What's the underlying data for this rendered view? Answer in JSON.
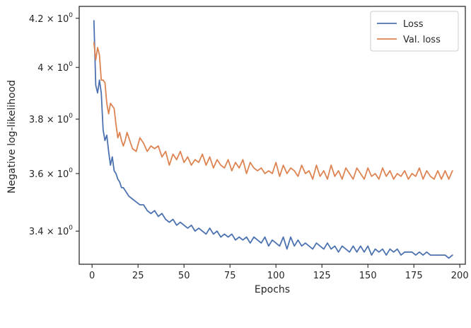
{
  "chart_data": {
    "type": "line",
    "title": "",
    "xlabel": "Epochs",
    "ylabel": "Negative log-likelihood",
    "yscale": "log",
    "xlim": [
      -7,
      203
    ],
    "ylim": [
      3.29,
      4.25
    ],
    "x_ticks": [
      0,
      25,
      50,
      75,
      100,
      125,
      150,
      175,
      200
    ],
    "x_tick_labels": [
      "0",
      "25",
      "50",
      "75",
      "100",
      "125",
      "150",
      "175",
      "200"
    ],
    "y_ticks": [
      3.4,
      3.6,
      3.8,
      4.0,
      4.2
    ],
    "y_tick_labels": [
      {
        "mantissa": "3.4",
        "base": "10",
        "exp": "0"
      },
      {
        "mantissa": "3.6",
        "base": "10",
        "exp": "0"
      },
      {
        "mantissa": "3.8",
        "base": "10",
        "exp": "0"
      },
      {
        "mantissa": "4",
        "base": "10",
        "exp": "0"
      },
      {
        "mantissa": "4.2",
        "base": "10",
        "exp": "0"
      }
    ],
    "grid": false,
    "legend_position": "top-right",
    "series": [
      {
        "name": "Loss",
        "color": "#4c72b0",
        "points": [
          [
            1,
            4.19
          ],
          [
            2,
            3.93
          ],
          [
            3,
            3.9
          ],
          [
            4,
            3.95
          ],
          [
            5,
            3.9
          ],
          [
            6,
            3.76
          ],
          [
            7,
            3.72
          ],
          [
            8,
            3.74
          ],
          [
            9,
            3.68
          ],
          [
            10,
            3.63
          ],
          [
            11,
            3.66
          ],
          [
            12,
            3.61
          ],
          [
            13,
            3.6
          ],
          [
            14,
            3.58
          ],
          [
            15,
            3.57
          ],
          [
            16,
            3.55
          ],
          [
            17,
            3.55
          ],
          [
            18,
            3.54
          ],
          [
            19,
            3.53
          ],
          [
            20,
            3.52
          ],
          [
            22,
            3.51
          ],
          [
            24,
            3.5
          ],
          [
            26,
            3.49
          ],
          [
            28,
            3.49
          ],
          [
            30,
            3.47
          ],
          [
            32,
            3.46
          ],
          [
            34,
            3.47
          ],
          [
            36,
            3.45
          ],
          [
            38,
            3.46
          ],
          [
            40,
            3.44
          ],
          [
            42,
            3.43
          ],
          [
            44,
            3.44
          ],
          [
            46,
            3.42
          ],
          [
            48,
            3.43
          ],
          [
            50,
            3.42
          ],
          [
            52,
            3.41
          ],
          [
            54,
            3.42
          ],
          [
            56,
            3.4
          ],
          [
            58,
            3.41
          ],
          [
            60,
            3.4
          ],
          [
            62,
            3.39
          ],
          [
            64,
            3.41
          ],
          [
            66,
            3.39
          ],
          [
            68,
            3.4
          ],
          [
            70,
            3.38
          ],
          [
            72,
            3.39
          ],
          [
            74,
            3.38
          ],
          [
            76,
            3.39
          ],
          [
            78,
            3.37
          ],
          [
            80,
            3.38
          ],
          [
            82,
            3.37
          ],
          [
            84,
            3.38
          ],
          [
            86,
            3.36
          ],
          [
            88,
            3.38
          ],
          [
            90,
            3.37
          ],
          [
            92,
            3.36
          ],
          [
            94,
            3.38
          ],
          [
            96,
            3.35
          ],
          [
            98,
            3.37
          ],
          [
            100,
            3.36
          ],
          [
            102,
            3.35
          ],
          [
            104,
            3.38
          ],
          [
            106,
            3.34
          ],
          [
            108,
            3.38
          ],
          [
            110,
            3.35
          ],
          [
            112,
            3.37
          ],
          [
            114,
            3.35
          ],
          [
            116,
            3.36
          ],
          [
            118,
            3.35
          ],
          [
            120,
            3.34
          ],
          [
            122,
            3.36
          ],
          [
            124,
            3.35
          ],
          [
            126,
            3.34
          ],
          [
            128,
            3.36
          ],
          [
            130,
            3.34
          ],
          [
            132,
            3.35
          ],
          [
            134,
            3.33
          ],
          [
            136,
            3.35
          ],
          [
            138,
            3.34
          ],
          [
            140,
            3.33
          ],
          [
            142,
            3.35
          ],
          [
            144,
            3.33
          ],
          [
            146,
            3.35
          ],
          [
            148,
            3.33
          ],
          [
            150,
            3.35
          ],
          [
            152,
            3.32
          ],
          [
            154,
            3.34
          ],
          [
            156,
            3.33
          ],
          [
            158,
            3.34
          ],
          [
            160,
            3.32
          ],
          [
            162,
            3.34
          ],
          [
            164,
            3.33
          ],
          [
            166,
            3.34
          ],
          [
            168,
            3.32
          ],
          [
            170,
            3.33
          ],
          [
            172,
            3.33
          ],
          [
            174,
            3.33
          ],
          [
            176,
            3.32
          ],
          [
            178,
            3.33
          ],
          [
            180,
            3.32
          ],
          [
            182,
            3.33
          ],
          [
            184,
            3.32
          ],
          [
            186,
            3.32
          ],
          [
            188,
            3.32
          ],
          [
            190,
            3.32
          ],
          [
            192,
            3.32
          ],
          [
            194,
            3.31
          ],
          [
            196,
            3.32
          ]
        ]
      },
      {
        "name": "Val. loss",
        "color": "#dd8452",
        "points": [
          [
            1,
            4.1
          ],
          [
            2,
            4.03
          ],
          [
            3,
            4.08
          ],
          [
            4,
            4.05
          ],
          [
            5,
            3.95
          ],
          [
            6,
            3.95
          ],
          [
            7,
            3.94
          ],
          [
            8,
            3.86
          ],
          [
            9,
            3.82
          ],
          [
            10,
            3.86
          ],
          [
            11,
            3.85
          ],
          [
            12,
            3.84
          ],
          [
            13,
            3.78
          ],
          [
            14,
            3.73
          ],
          [
            15,
            3.75
          ],
          [
            16,
            3.72
          ],
          [
            17,
            3.7
          ],
          [
            18,
            3.72
          ],
          [
            19,
            3.75
          ],
          [
            20,
            3.73
          ],
          [
            22,
            3.69
          ],
          [
            24,
            3.68
          ],
          [
            26,
            3.73
          ],
          [
            28,
            3.71
          ],
          [
            30,
            3.68
          ],
          [
            32,
            3.7
          ],
          [
            34,
            3.69
          ],
          [
            36,
            3.7
          ],
          [
            38,
            3.66
          ],
          [
            40,
            3.68
          ],
          [
            42,
            3.63
          ],
          [
            44,
            3.67
          ],
          [
            46,
            3.65
          ],
          [
            48,
            3.68
          ],
          [
            50,
            3.64
          ],
          [
            52,
            3.66
          ],
          [
            54,
            3.63
          ],
          [
            56,
            3.65
          ],
          [
            58,
            3.64
          ],
          [
            60,
            3.67
          ],
          [
            62,
            3.63
          ],
          [
            64,
            3.66
          ],
          [
            66,
            3.62
          ],
          [
            68,
            3.65
          ],
          [
            70,
            3.63
          ],
          [
            72,
            3.62
          ],
          [
            74,
            3.65
          ],
          [
            76,
            3.61
          ],
          [
            78,
            3.64
          ],
          [
            80,
            3.62
          ],
          [
            82,
            3.65
          ],
          [
            84,
            3.6
          ],
          [
            86,
            3.64
          ],
          [
            88,
            3.62
          ],
          [
            90,
            3.61
          ],
          [
            92,
            3.62
          ],
          [
            94,
            3.6
          ],
          [
            96,
            3.61
          ],
          [
            98,
            3.6
          ],
          [
            100,
            3.64
          ],
          [
            102,
            3.59
          ],
          [
            104,
            3.63
          ],
          [
            106,
            3.6
          ],
          [
            108,
            3.62
          ],
          [
            110,
            3.61
          ],
          [
            112,
            3.59
          ],
          [
            114,
            3.63
          ],
          [
            116,
            3.6
          ],
          [
            118,
            3.61
          ],
          [
            120,
            3.58
          ],
          [
            122,
            3.63
          ],
          [
            124,
            3.59
          ],
          [
            126,
            3.61
          ],
          [
            128,
            3.58
          ],
          [
            130,
            3.63
          ],
          [
            132,
            3.59
          ],
          [
            134,
            3.61
          ],
          [
            136,
            3.58
          ],
          [
            138,
            3.62
          ],
          [
            140,
            3.6
          ],
          [
            142,
            3.58
          ],
          [
            144,
            3.62
          ],
          [
            146,
            3.6
          ],
          [
            148,
            3.58
          ],
          [
            150,
            3.62
          ],
          [
            152,
            3.59
          ],
          [
            154,
            3.6
          ],
          [
            156,
            3.58
          ],
          [
            158,
            3.62
          ],
          [
            160,
            3.59
          ],
          [
            162,
            3.61
          ],
          [
            164,
            3.58
          ],
          [
            166,
            3.6
          ],
          [
            168,
            3.59
          ],
          [
            170,
            3.61
          ],
          [
            172,
            3.58
          ],
          [
            174,
            3.6
          ],
          [
            176,
            3.59
          ],
          [
            178,
            3.62
          ],
          [
            180,
            3.58
          ],
          [
            182,
            3.61
          ],
          [
            184,
            3.59
          ],
          [
            186,
            3.58
          ],
          [
            188,
            3.61
          ],
          [
            190,
            3.58
          ],
          [
            192,
            3.61
          ],
          [
            194,
            3.58
          ],
          [
            196,
            3.61
          ]
        ]
      }
    ]
  }
}
